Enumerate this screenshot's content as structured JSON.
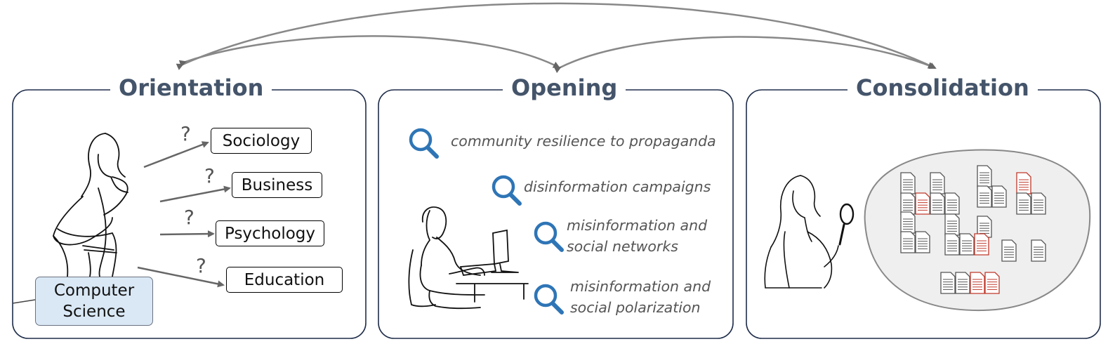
{
  "stages": {
    "orientation": {
      "title": "Orientation"
    },
    "opening": {
      "title": "Opening"
    },
    "consolidation": {
      "title": "Consolidation"
    }
  },
  "orientation": {
    "origin_field": {
      "line1": "Computer",
      "line2": "Science"
    },
    "fields": [
      {
        "label": "Sociology",
        "marker": "?"
      },
      {
        "label": "Business",
        "marker": "?"
      },
      {
        "label": "Psychology",
        "marker": "?"
      },
      {
        "label": "Education",
        "marker": "?"
      }
    ]
  },
  "opening": {
    "queries": [
      {
        "line1": "community resilience to propaganda",
        "line2": ""
      },
      {
        "line1": "disinformation campaigns",
        "line2": ""
      },
      {
        "line1": "misinformation and",
        "line2": "social networks"
      },
      {
        "line1": "misinformation and",
        "line2": "social polarization"
      }
    ]
  },
  "colors": {
    "title": "#44546a",
    "panel_border": "#1f2d4a",
    "search_icon": "#2e75b6",
    "highlight_doc": "#c0392b",
    "origin_fill": "#dae8f5"
  },
  "icons": {
    "search": "magnifier-icon",
    "document": "document-icon"
  }
}
